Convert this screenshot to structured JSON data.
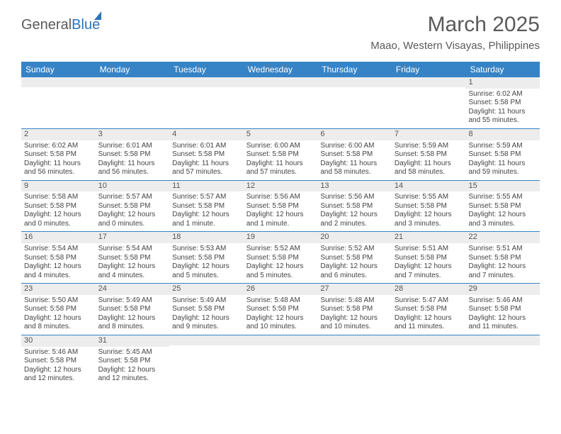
{
  "brand": {
    "part1": "General",
    "part2": "Blue"
  },
  "title": {
    "month": "March 2025",
    "location": "Maao, Western Visayas, Philippines"
  },
  "style": {
    "accent": "#3683c6",
    "band": "#ededed",
    "text": "#444444",
    "header_fontsize": 12,
    "cell_fontsize": 10,
    "title_fontsize": 30,
    "loc_fontsize": 15
  },
  "day_headers": [
    "Sunday",
    "Monday",
    "Tuesday",
    "Wednesday",
    "Thursday",
    "Friday",
    "Saturday"
  ],
  "weeks": [
    [
      {
        "n": "",
        "sr": "",
        "ss": "",
        "dl": ""
      },
      {
        "n": "",
        "sr": "",
        "ss": "",
        "dl": ""
      },
      {
        "n": "",
        "sr": "",
        "ss": "",
        "dl": ""
      },
      {
        "n": "",
        "sr": "",
        "ss": "",
        "dl": ""
      },
      {
        "n": "",
        "sr": "",
        "ss": "",
        "dl": ""
      },
      {
        "n": "",
        "sr": "",
        "ss": "",
        "dl": ""
      },
      {
        "n": "1",
        "sr": "Sunrise: 6:02 AM",
        "ss": "Sunset: 5:58 PM",
        "dl": "Daylight: 11 hours and 55 minutes."
      }
    ],
    [
      {
        "n": "2",
        "sr": "Sunrise: 6:02 AM",
        "ss": "Sunset: 5:58 PM",
        "dl": "Daylight: 11 hours and 56 minutes."
      },
      {
        "n": "3",
        "sr": "Sunrise: 6:01 AM",
        "ss": "Sunset: 5:58 PM",
        "dl": "Daylight: 11 hours and 56 minutes."
      },
      {
        "n": "4",
        "sr": "Sunrise: 6:01 AM",
        "ss": "Sunset: 5:58 PM",
        "dl": "Daylight: 11 hours and 57 minutes."
      },
      {
        "n": "5",
        "sr": "Sunrise: 6:00 AM",
        "ss": "Sunset: 5:58 PM",
        "dl": "Daylight: 11 hours and 57 minutes."
      },
      {
        "n": "6",
        "sr": "Sunrise: 6:00 AM",
        "ss": "Sunset: 5:58 PM",
        "dl": "Daylight: 11 hours and 58 minutes."
      },
      {
        "n": "7",
        "sr": "Sunrise: 5:59 AM",
        "ss": "Sunset: 5:58 PM",
        "dl": "Daylight: 11 hours and 58 minutes."
      },
      {
        "n": "8",
        "sr": "Sunrise: 5:59 AM",
        "ss": "Sunset: 5:58 PM",
        "dl": "Daylight: 11 hours and 59 minutes."
      }
    ],
    [
      {
        "n": "9",
        "sr": "Sunrise: 5:58 AM",
        "ss": "Sunset: 5:58 PM",
        "dl": "Daylight: 12 hours and 0 minutes."
      },
      {
        "n": "10",
        "sr": "Sunrise: 5:57 AM",
        "ss": "Sunset: 5:58 PM",
        "dl": "Daylight: 12 hours and 0 minutes."
      },
      {
        "n": "11",
        "sr": "Sunrise: 5:57 AM",
        "ss": "Sunset: 5:58 PM",
        "dl": "Daylight: 12 hours and 1 minute."
      },
      {
        "n": "12",
        "sr": "Sunrise: 5:56 AM",
        "ss": "Sunset: 5:58 PM",
        "dl": "Daylight: 12 hours and 1 minute."
      },
      {
        "n": "13",
        "sr": "Sunrise: 5:56 AM",
        "ss": "Sunset: 5:58 PM",
        "dl": "Daylight: 12 hours and 2 minutes."
      },
      {
        "n": "14",
        "sr": "Sunrise: 5:55 AM",
        "ss": "Sunset: 5:58 PM",
        "dl": "Daylight: 12 hours and 3 minutes."
      },
      {
        "n": "15",
        "sr": "Sunrise: 5:55 AM",
        "ss": "Sunset: 5:58 PM",
        "dl": "Daylight: 12 hours and 3 minutes."
      }
    ],
    [
      {
        "n": "16",
        "sr": "Sunrise: 5:54 AM",
        "ss": "Sunset: 5:58 PM",
        "dl": "Daylight: 12 hours and 4 minutes."
      },
      {
        "n": "17",
        "sr": "Sunrise: 5:54 AM",
        "ss": "Sunset: 5:58 PM",
        "dl": "Daylight: 12 hours and 4 minutes."
      },
      {
        "n": "18",
        "sr": "Sunrise: 5:53 AM",
        "ss": "Sunset: 5:58 PM",
        "dl": "Daylight: 12 hours and 5 minutes."
      },
      {
        "n": "19",
        "sr": "Sunrise: 5:52 AM",
        "ss": "Sunset: 5:58 PM",
        "dl": "Daylight: 12 hours and 5 minutes."
      },
      {
        "n": "20",
        "sr": "Sunrise: 5:52 AM",
        "ss": "Sunset: 5:58 PM",
        "dl": "Daylight: 12 hours and 6 minutes."
      },
      {
        "n": "21",
        "sr": "Sunrise: 5:51 AM",
        "ss": "Sunset: 5:58 PM",
        "dl": "Daylight: 12 hours and 7 minutes."
      },
      {
        "n": "22",
        "sr": "Sunrise: 5:51 AM",
        "ss": "Sunset: 5:58 PM",
        "dl": "Daylight: 12 hours and 7 minutes."
      }
    ],
    [
      {
        "n": "23",
        "sr": "Sunrise: 5:50 AM",
        "ss": "Sunset: 5:58 PM",
        "dl": "Daylight: 12 hours and 8 minutes."
      },
      {
        "n": "24",
        "sr": "Sunrise: 5:49 AM",
        "ss": "Sunset: 5:58 PM",
        "dl": "Daylight: 12 hours and 8 minutes."
      },
      {
        "n": "25",
        "sr": "Sunrise: 5:49 AM",
        "ss": "Sunset: 5:58 PM",
        "dl": "Daylight: 12 hours and 9 minutes."
      },
      {
        "n": "26",
        "sr": "Sunrise: 5:48 AM",
        "ss": "Sunset: 5:58 PM",
        "dl": "Daylight: 12 hours and 10 minutes."
      },
      {
        "n": "27",
        "sr": "Sunrise: 5:48 AM",
        "ss": "Sunset: 5:58 PM",
        "dl": "Daylight: 12 hours and 10 minutes."
      },
      {
        "n": "28",
        "sr": "Sunrise: 5:47 AM",
        "ss": "Sunset: 5:58 PM",
        "dl": "Daylight: 12 hours and 11 minutes."
      },
      {
        "n": "29",
        "sr": "Sunrise: 5:46 AM",
        "ss": "Sunset: 5:58 PM",
        "dl": "Daylight: 12 hours and 11 minutes."
      }
    ],
    [
      {
        "n": "30",
        "sr": "Sunrise: 5:46 AM",
        "ss": "Sunset: 5:58 PM",
        "dl": "Daylight: 12 hours and 12 minutes."
      },
      {
        "n": "31",
        "sr": "Sunrise: 5:45 AM",
        "ss": "Sunset: 5:58 PM",
        "dl": "Daylight: 12 hours and 12 minutes."
      },
      {
        "n": "",
        "sr": "",
        "ss": "",
        "dl": ""
      },
      {
        "n": "",
        "sr": "",
        "ss": "",
        "dl": ""
      },
      {
        "n": "",
        "sr": "",
        "ss": "",
        "dl": ""
      },
      {
        "n": "",
        "sr": "",
        "ss": "",
        "dl": ""
      },
      {
        "n": "",
        "sr": "",
        "ss": "",
        "dl": ""
      }
    ]
  ]
}
